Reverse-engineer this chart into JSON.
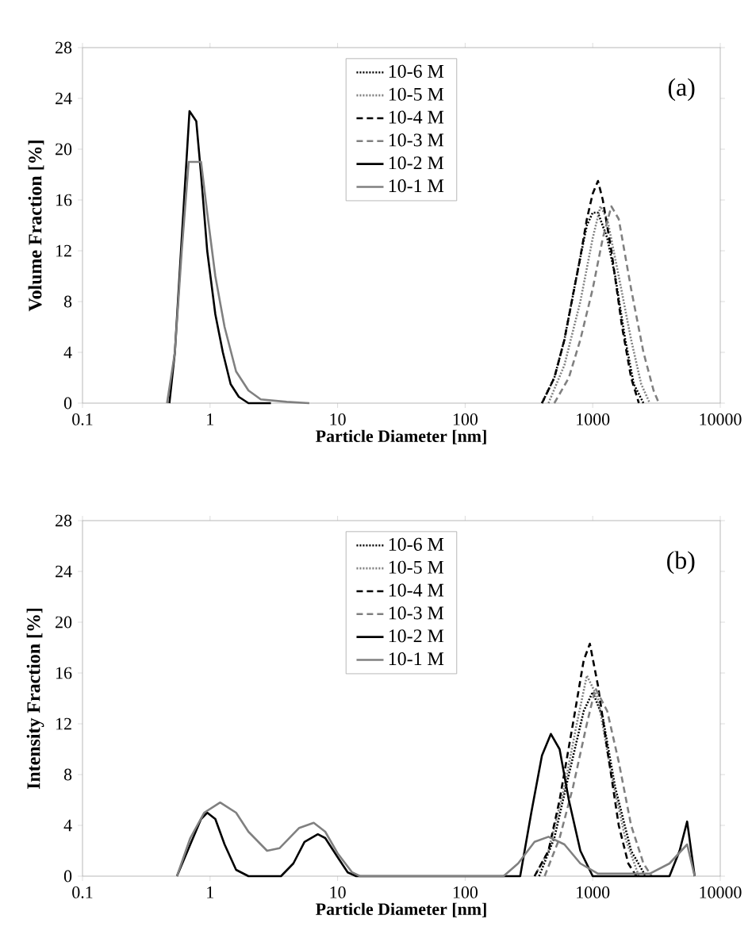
{
  "chart_data": [
    {
      "type": "line",
      "xlabel": "Particle Diameter [nm]",
      "ylabel": "Volume Fraction [%]",
      "log": "x",
      "xlim": [
        0.1,
        10000
      ],
      "xticks": [
        0.1,
        1,
        10,
        100,
        1000,
        10000
      ],
      "ylim": [
        0,
        28
      ],
      "yticks": [
        0,
        4,
        8,
        12,
        16,
        20,
        24,
        28
      ],
      "grid": false,
      "legend": "top",
      "annotations": [
        "(a)"
      ],
      "series": [
        {
          "name": "10-6 M",
          "color": "#000000",
          "line_style": "dotted",
          "x": [
            400,
            500,
            600,
            700,
            800,
            900,
            1000,
            1100,
            1300,
            1500,
            1800,
            2100,
            2500
          ],
          "values": [
            0,
            2,
            5,
            8.5,
            11.5,
            14,
            15,
            15,
            13,
            10,
            5,
            1.5,
            0
          ]
        },
        {
          "name": "10-5 M",
          "color": "#808080",
          "line_style": "dotted",
          "x": [
            450,
            600,
            800,
            1000,
            1150,
            1300,
            1600,
            2000,
            2400,
            2800
          ],
          "values": [
            0,
            3,
            8,
            13,
            15.5,
            14.5,
            10,
            5,
            1.5,
            0
          ]
        },
        {
          "name": "10-4 M",
          "color": "#000000",
          "line_style": "dashed",
          "x": [
            400,
            500,
            600,
            700,
            800,
            900,
            1000,
            1100,
            1200,
            1400,
            1700,
            2000,
            2300
          ],
          "values": [
            0,
            2,
            5,
            8.5,
            11.5,
            14.5,
            16.5,
            17.5,
            16,
            12,
            6,
            2,
            0
          ]
        },
        {
          "name": "10-3 M",
          "color": "#808080",
          "line_style": "dashed",
          "x": [
            500,
            650,
            800,
            1000,
            1200,
            1400,
            1600,
            2000,
            2500,
            3000,
            3300
          ],
          "values": [
            0,
            2,
            5,
            9,
            13,
            15.5,
            14.5,
            9,
            4,
            1,
            0
          ]
        },
        {
          "name": "10-2 M",
          "color": "#000000",
          "line_style": "solid",
          "x": [
            0.48,
            0.53,
            0.6,
            0.69,
            0.78,
            0.85,
            0.95,
            1.1,
            1.26,
            1.45,
            1.68,
            2,
            3
          ],
          "values": [
            0,
            4,
            13,
            23,
            22.2,
            18,
            12,
            7,
            4,
            1.5,
            0.5,
            0,
            0
          ]
        },
        {
          "name": "10-1 M",
          "color": "#808080",
          "line_style": "solid",
          "x": [
            0.46,
            0.53,
            0.6,
            0.68,
            0.85,
            0.95,
            1.1,
            1.3,
            1.6,
            2,
            2.5,
            4,
            6
          ],
          "values": [
            0,
            4,
            12,
            19,
            19,
            15,
            10,
            6,
            2.5,
            1,
            0.3,
            0.1,
            0
          ]
        }
      ]
    },
    {
      "type": "line",
      "xlabel": "Particle Diameter [nm]",
      "ylabel": "Intensity Fraction [%]",
      "log": "x",
      "xlim": [
        0.1,
        10000
      ],
      "xticks": [
        0.1,
        1,
        10,
        100,
        1000,
        10000
      ],
      "ylim": [
        0,
        28
      ],
      "yticks": [
        0,
        4,
        8,
        12,
        16,
        20,
        24,
        28
      ],
      "grid": false,
      "legend": "top",
      "annotations": [
        "(b)"
      ],
      "series": [
        {
          "name": "10-6 M",
          "color": "#000000",
          "line_style": "dotted",
          "x": [
            380,
            500,
            650,
            850,
            1000,
            1200,
            1500,
            2000,
            2600
          ],
          "values": [
            0,
            3,
            8,
            13,
            14.5,
            12.5,
            7,
            2,
            0
          ]
        },
        {
          "name": "10-5 M",
          "color": "#808080",
          "line_style": "dotted",
          "x": [
            350,
            450,
            600,
            750,
            900,
            1100,
            1400,
            1800,
            2300
          ],
          "values": [
            0,
            2,
            7,
            12,
            15.8,
            14,
            8,
            3,
            0
          ]
        },
        {
          "name": "10-4 M",
          "color": "#000000",
          "line_style": "dashed",
          "x": [
            350,
            450,
            550,
            700,
            850,
            950,
            1100,
            1300,
            1600,
            1900,
            2200
          ],
          "values": [
            0,
            2,
            6,
            12,
            17,
            18.3,
            15,
            10,
            4,
            1,
            0
          ]
        },
        {
          "name": "10-3 M",
          "color": "#808080",
          "line_style": "dashed",
          "x": [
            420,
            550,
            700,
            900,
            1050,
            1300,
            1600,
            2000,
            2500,
            2900
          ],
          "values": [
            0,
            3,
            7,
            12,
            14.8,
            13,
            9,
            4,
            1,
            0
          ]
        },
        {
          "name": "10-2 M",
          "color": "#000000",
          "line_style": "solid",
          "x": [
            0.55,
            0.7,
            0.85,
            0.95,
            1.1,
            1.3,
            1.6,
            2,
            3.6,
            4.5,
            5.5,
            7,
            8,
            10,
            12,
            14,
            270,
            330,
            400,
            470,
            550,
            650,
            800,
            1000,
            4000,
            4800,
            5500,
            6300
          ],
          "values": [
            0,
            2.5,
            4.5,
            5,
            4.5,
            2.5,
            0.5,
            0,
            0,
            1,
            2.7,
            3.3,
            3,
            1.5,
            0.3,
            0,
            0,
            5,
            9.5,
            11.2,
            10,
            6,
            2,
            0,
            0,
            2,
            4.3,
            0
          ]
        },
        {
          "name": "10-1 M",
          "color": "#808080",
          "line_style": "solid",
          "x": [
            0.55,
            0.7,
            0.9,
            1.2,
            1.6,
            2,
            2.8,
            3.5,
            5,
            6.5,
            8,
            10,
            13,
            15,
            200,
            260,
            350,
            450,
            600,
            800,
            1100,
            2800,
            4000,
            5500,
            6300
          ],
          "values": [
            0,
            3,
            5,
            5.8,
            5,
            3.5,
            2,
            2.2,
            3.8,
            4.2,
            3.5,
            1.8,
            0.3,
            0,
            0,
            1,
            2.7,
            3.1,
            2.5,
            1,
            0.2,
            0.2,
            1,
            2.5,
            0
          ]
        }
      ]
    }
  ]
}
